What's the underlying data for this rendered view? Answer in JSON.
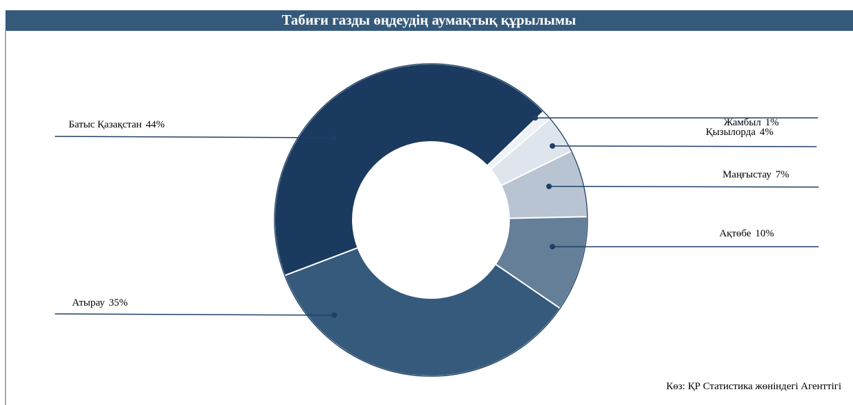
{
  "chart_data": {
    "type": "donut",
    "title": "Табиғи газды өңдеудің аумақтық құрылымы",
    "source": "Көз: ҚР Статистика жөніндегі Агенттігі",
    "categories": [
      "Батыс Қазақстан",
      "Атырау",
      "Ақтөбе",
      "Маңғыстау",
      "Қызылорда",
      "Жамбыл"
    ],
    "values": [
      44,
      35,
      10,
      7,
      4,
      1
    ],
    "value_labels": [
      "44%",
      "35%",
      "10%",
      "7%",
      "4%",
      "1%"
    ],
    "colors": [
      "#1b3a5f",
      "#355a7c",
      "#657f98",
      "#b8c4d1",
      "#dfe5ed",
      "#eef1f5"
    ]
  }
}
